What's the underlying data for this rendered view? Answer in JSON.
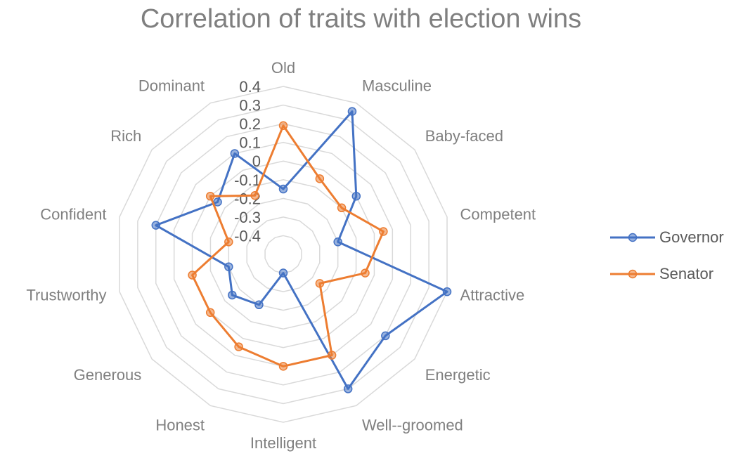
{
  "chart_data": {
    "type": "radar",
    "title": "Correlation of traits with election wins",
    "categories": [
      "Old",
      "Masculine",
      "Baby-faced",
      "Competent",
      "Attractive",
      "Energetic",
      "Well--groomed",
      "Intelligent",
      "Honest",
      "Generous",
      "Trustworthy",
      "Confident",
      "Rich",
      "Dominant"
    ],
    "ticks": [
      0.4,
      0.3,
      0.2,
      0.1,
      0,
      -0.1,
      -0.2,
      -0.3,
      -0.4
    ],
    "rlim": [
      -0.5,
      0.4
    ],
    "grid": true,
    "legend_position": "right",
    "series": [
      {
        "name": "Governor",
        "color": "#4472c4",
        "values": [
          -0.15,
          0.35,
          0.0,
          -0.2,
          0.4,
          0.2,
          0.3,
          -0.4,
          -0.2,
          -0.15,
          -0.2,
          0.2,
          -0.05,
          0.1
        ]
      },
      {
        "name": "Senator",
        "color": "#ed7d31",
        "values": [
          0.19,
          -0.05,
          -0.1,
          0.05,
          -0.05,
          -0.25,
          0.1,
          0.1,
          0.05,
          0.0,
          0.0,
          -0.2,
          0.0,
          -0.15
        ]
      }
    ]
  }
}
